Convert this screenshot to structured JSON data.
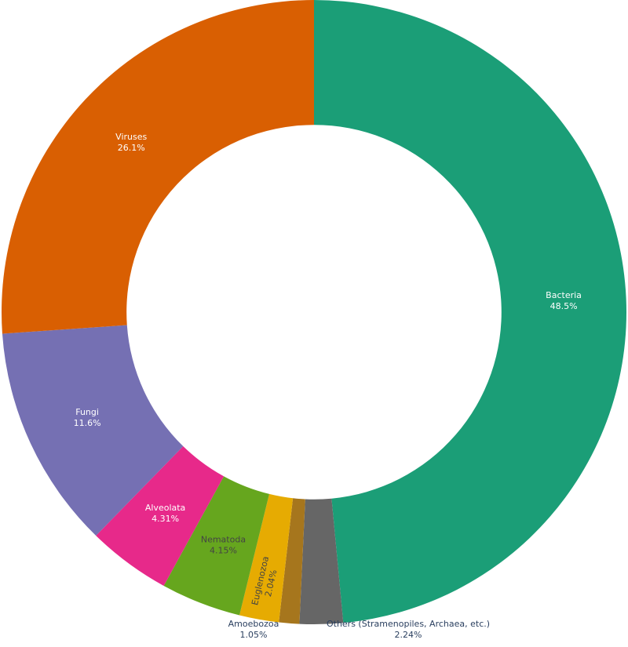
{
  "chart_data": {
    "type": "pie",
    "hole": 0.6,
    "direction": "clockwise",
    "start": "12 o'clock",
    "slices": [
      {
        "label": "Bacteria",
        "value": 48.5,
        "percent_text": "48.5%",
        "color": "#1b9e77",
        "text_color": "#ffffff"
      },
      {
        "label": "Others (Stramenopiles, Archaea, etc.)",
        "value": 2.24,
        "percent_text": "2.24%",
        "color": "#666666",
        "text_color": "#2a3f5f"
      },
      {
        "label": "Amoebozoa",
        "value": 1.05,
        "percent_text": "1.05%",
        "color": "#a6761d",
        "text_color": "#2a3f5f"
      },
      {
        "label": "Euglenozoa",
        "value": 2.04,
        "percent_text": "2.04%",
        "color": "#e6ab02",
        "text_color": "#444444"
      },
      {
        "label": "Nematoda",
        "value": 4.15,
        "percent_text": "4.15%",
        "color": "#66a61e",
        "text_color": "#444444"
      },
      {
        "label": "Alveolata",
        "value": 4.31,
        "percent_text": "4.31%",
        "color": "#e7298a",
        "text_color": "#ffffff"
      },
      {
        "label": "Fungi",
        "value": 11.6,
        "percent_text": "11.6%",
        "color": "#7570b3",
        "text_color": "#ffffff"
      },
      {
        "label": "Viruses",
        "value": 26.1,
        "percent_text": "26.1%",
        "color": "#d95f02",
        "text_color": "#ffffff"
      }
    ]
  }
}
